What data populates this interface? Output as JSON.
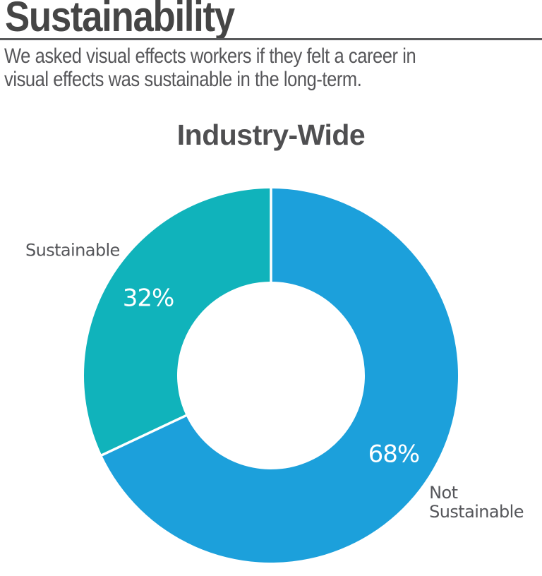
{
  "header": {
    "title": "Sustainability",
    "subtitle_line1": "We asked visual effects workers if they felt a career in",
    "subtitle_line2": "visual effects was sustainable in the long-term."
  },
  "chart_data": {
    "type": "pie",
    "subtype": "donut",
    "title": "Industry-Wide",
    "start_angle_deg": 0,
    "direction": "clockwise",
    "inner_radius_ratio": 0.5,
    "legend_position": "none",
    "categories": [
      "Not Sustainable",
      "Sustainable"
    ],
    "values": [
      68,
      32
    ],
    "pct_labels": [
      "68%",
      "32%"
    ],
    "label_lines": [
      [
        "Not",
        "Sustainable"
      ],
      [
        "Sustainable"
      ]
    ],
    "colors": [
      "#1CA0DB",
      "#10B3BB"
    ],
    "separator_color": "#FFFFFF",
    "pct_text_color": "#FFFFFF",
    "category_text_color": "#55565A"
  }
}
